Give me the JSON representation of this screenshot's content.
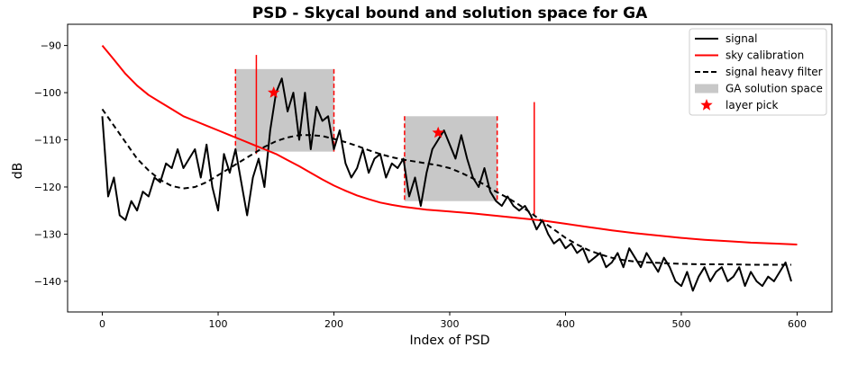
{
  "chart_data": {
    "type": "line",
    "title": "PSD - Skycal bound and solution space for GA",
    "xlabel": "Index of PSD",
    "ylabel": "dB",
    "xlim": [
      -30,
      630
    ],
    "ylim": [
      -146.5,
      -85.5
    ],
    "xticks": [
      0,
      100,
      200,
      300,
      400,
      500,
      600
    ],
    "yticks": [
      -140,
      -130,
      -120,
      -110,
      -100,
      -90
    ],
    "legend_position": "upper right",
    "colors": {
      "signal": "#000000",
      "sky": "#ff0000",
      "filter": "#000000",
      "solution": "#c8c8c8",
      "pick": "#ff0000"
    },
    "legend": [
      {
        "label": "signal",
        "kind": "line",
        "color": "#000000"
      },
      {
        "label": "sky calibration",
        "kind": "line",
        "color": "#ff0000"
      },
      {
        "label": "signal heavy filter",
        "kind": "dashed",
        "color": "#000000"
      },
      {
        "label": "GA solution space",
        "kind": "patch",
        "color": "#c8c8c8"
      },
      {
        "label": "layer pick",
        "kind": "star",
        "color": "#ff0000"
      }
    ],
    "series": [
      {
        "name": "signal",
        "style": "solid",
        "x": [
          0,
          5,
          10,
          15,
          20,
          25,
          30,
          35,
          40,
          45,
          50,
          55,
          60,
          65,
          70,
          75,
          80,
          85,
          90,
          95,
          100,
          105,
          110,
          115,
          120,
          125,
          130,
          135,
          140,
          145,
          150,
          155,
          160,
          165,
          170,
          175,
          180,
          185,
          190,
          195,
          200,
          205,
          210,
          215,
          220,
          225,
          230,
          235,
          240,
          245,
          250,
          255,
          260,
          265,
          270,
          275,
          280,
          285,
          290,
          295,
          300,
          305,
          310,
          315,
          320,
          325,
          330,
          335,
          340,
          345,
          350,
          355,
          360,
          365,
          370,
          375,
          380,
          385,
          390,
          395,
          400,
          405,
          410,
          415,
          420,
          425,
          430,
          435,
          440,
          445,
          450,
          455,
          460,
          465,
          470,
          475,
          480,
          485,
          490,
          495,
          500,
          505,
          510,
          515,
          520,
          525,
          530,
          535,
          540,
          545,
          550,
          555,
          560,
          565,
          570,
          575,
          580,
          585,
          590,
          595
        ],
        "y": [
          -105,
          -122,
          -118,
          -126,
          -127,
          -123,
          -125,
          -121,
          -122,
          -118,
          -119,
          -115,
          -116,
          -112,
          -116,
          -114,
          -112,
          -118,
          -111,
          -120,
          -125,
          -113,
          -117,
          -112,
          -119,
          -126,
          -118,
          -114,
          -120,
          -108,
          -100,
          -97,
          -104,
          -100,
          -110,
          -100,
          -112,
          -103,
          -106,
          -105,
          -112,
          -108,
          -115,
          -118,
          -116,
          -112,
          -117,
          -114,
          -113,
          -118,
          -115,
          -116,
          -114,
          -122,
          -118,
          -124,
          -117,
          -112,
          -110,
          -108,
          -111,
          -114,
          -109,
          -114,
          -118,
          -120,
          -116,
          -121,
          -123,
          -124,
          -122,
          -124,
          -125,
          -124,
          -126,
          -129,
          -127,
          -130,
          -132,
          -131,
          -133,
          -132,
          -134,
          -133,
          -136,
          -135,
          -134,
          -137,
          -136,
          -134,
          -137,
          -133,
          -135,
          -137,
          -134,
          -136,
          -138,
          -135,
          -137,
          -140,
          -141,
          -138,
          -142,
          -139,
          -137,
          -140,
          -138,
          -137,
          -140,
          -139,
          -137,
          -141,
          -138,
          -140,
          -141,
          -139,
          -140,
          -138,
          -136,
          -140
        ]
      },
      {
        "name": "sky calibration",
        "style": "solid",
        "x": [
          0,
          10,
          20,
          30,
          40,
          50,
          60,
          70,
          80,
          90,
          100,
          110,
          120,
          130,
          140,
          150,
          160,
          170,
          180,
          190,
          200,
          210,
          220,
          230,
          240,
          250,
          260,
          270,
          280,
          290,
          300,
          320,
          340,
          360,
          380,
          400,
          420,
          440,
          460,
          480,
          500,
          520,
          540,
          560,
          580,
          600
        ],
        "y": [
          -90,
          -93,
          -96,
          -98.5,
          -100.5,
          -102,
          -103.5,
          -105,
          -106,
          -107,
          -108,
          -109,
          -110,
          -111,
          -112,
          -113,
          -114.3,
          -115.6,
          -117,
          -118.4,
          -119.7,
          -120.8,
          -121.8,
          -122.6,
          -123.3,
          -123.8,
          -124.2,
          -124.5,
          -124.8,
          -125,
          -125.2,
          -125.6,
          -126.1,
          -126.6,
          -127.1,
          -127.8,
          -128.5,
          -129.2,
          -129.8,
          -130.3,
          -130.8,
          -131.2,
          -131.5,
          -131.8,
          -132,
          -132.2
        ]
      },
      {
        "name": "signal heavy filter",
        "style": "dashed",
        "x": [
          0,
          10,
          20,
          30,
          40,
          50,
          60,
          70,
          80,
          90,
          100,
          110,
          120,
          130,
          140,
          150,
          160,
          170,
          180,
          190,
          200,
          210,
          220,
          230,
          240,
          250,
          260,
          270,
          280,
          290,
          300,
          310,
          320,
          330,
          340,
          350,
          360,
          370,
          380,
          390,
          400,
          410,
          420,
          430,
          440,
          450,
          460,
          470,
          480,
          490,
          500,
          520,
          540,
          560,
          580,
          595
        ],
        "y": [
          -103.5,
          -107,
          -110.5,
          -114,
          -116.5,
          -118.5,
          -119.8,
          -120.3,
          -120,
          -119,
          -117.5,
          -116,
          -114.5,
          -113,
          -111.5,
          -110.3,
          -109.5,
          -109,
          -109,
          -109.2,
          -109.8,
          -110.5,
          -111.3,
          -112.2,
          -113,
          -113.7,
          -114.2,
          -114.6,
          -115,
          -115.4,
          -116,
          -117,
          -118.2,
          -119.5,
          -121,
          -122.3,
          -123.8,
          -125.5,
          -127.3,
          -129,
          -130.8,
          -132.2,
          -133.4,
          -134.3,
          -135,
          -135.5,
          -135.8,
          -136,
          -136.1,
          -136.2,
          -136.3,
          -136.4,
          -136.4,
          -136.5,
          -136.5,
          -136.5
        ]
      }
    ],
    "solution_spaces": [
      {
        "x_range": [
          115,
          200
        ],
        "y_range": [
          -112.5,
          -95
        ]
      },
      {
        "x_range": [
          261,
          341
        ],
        "y_range": [
          -123,
          -105
        ]
      }
    ],
    "vertical_markers": [
      {
        "x": 133,
        "y_range": [
          -113,
          -92
        ]
      },
      {
        "x": 373,
        "y_range": [
          -126,
          -102
        ]
      }
    ],
    "layer_picks": [
      {
        "x": 148,
        "y": -100
      },
      {
        "x": 290,
        "y": -108.5
      }
    ]
  }
}
